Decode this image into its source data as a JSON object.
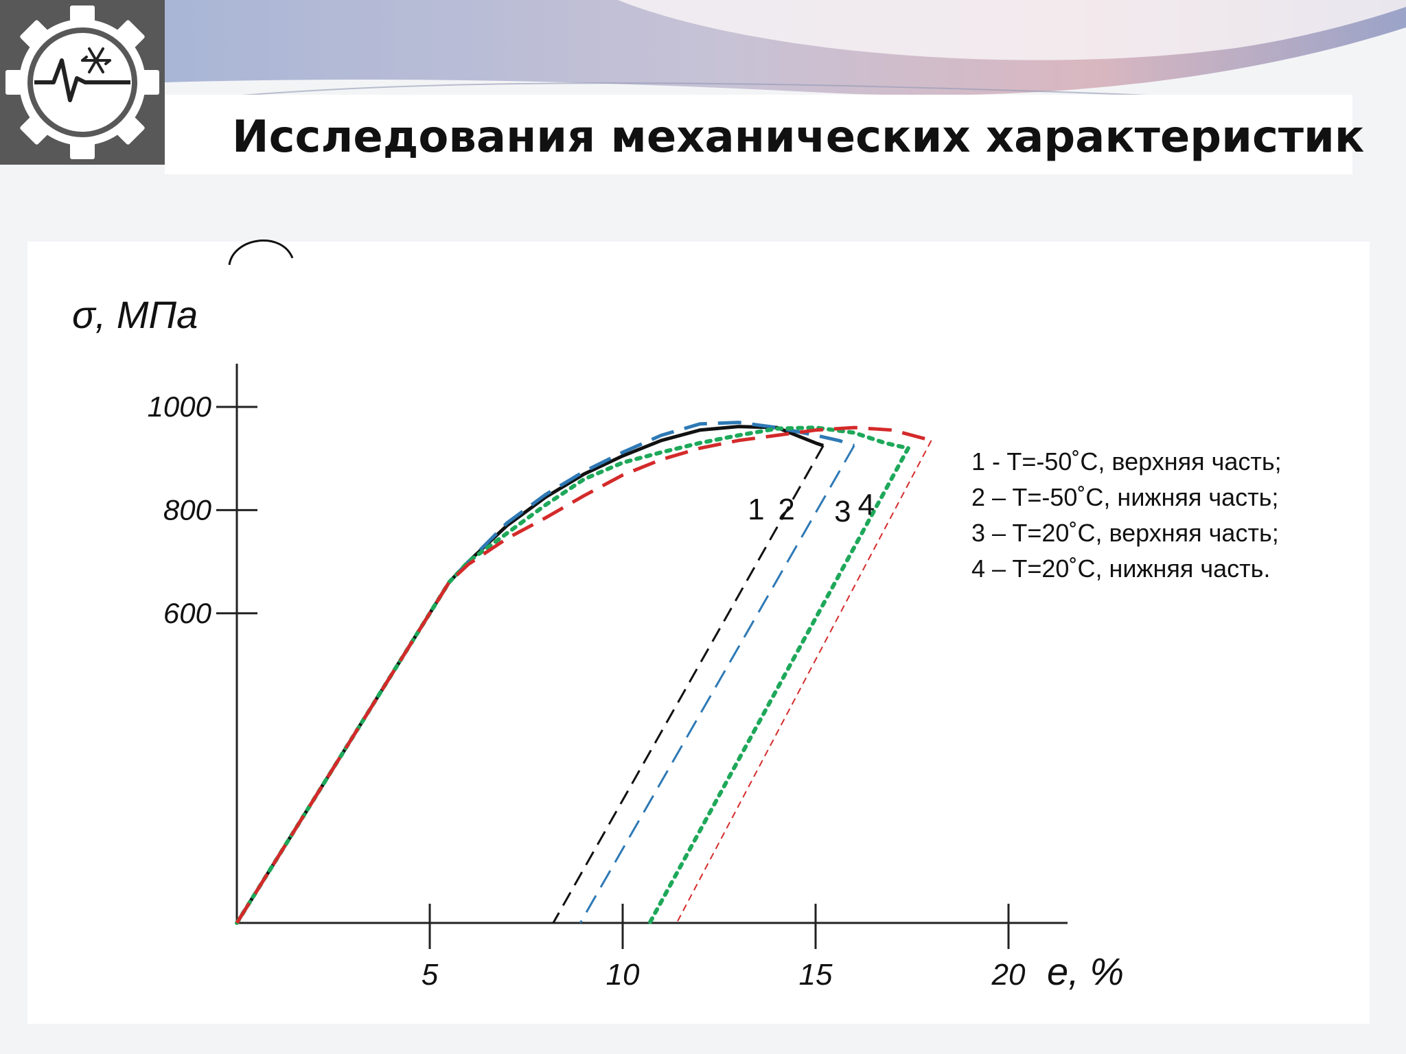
{
  "slide": {
    "title": "Исследования механических характеристик"
  },
  "logo": {
    "icon": "gear-snowflake-pulse-icon",
    "colors": {
      "gear": "#555555",
      "inner": "#ffffff",
      "symbol": "#222222"
    }
  },
  "chart_data": {
    "type": "line",
    "ylabel": "σ, МПа",
    "xlabel": "e, %",
    "xlim": [
      0,
      21
    ],
    "ylim": [
      0,
      1060
    ],
    "x_ticks": [
      {
        "value": 5,
        "label": "5"
      },
      {
        "value": 10,
        "label": "10"
      },
      {
        "value": 15,
        "label": "15"
      },
      {
        "value": 20,
        "label": "20"
      }
    ],
    "y_ticks": [
      {
        "value": 600,
        "label": "600"
      },
      {
        "value": 800,
        "label": "800"
      },
      {
        "value": 1000,
        "label": "1000"
      }
    ],
    "grid": false,
    "legend": {
      "placement": "right",
      "entries": [
        "1 - T=-50˚C, верхняя часть;",
        "2 – T=-50˚C, нижняя часть;",
        "3 – T=20˚C, верхняя часть;",
        "4 – T=20˚C, нижняя часть."
      ]
    },
    "series": [
      {
        "label": "1",
        "color": "#111111",
        "style": "solid",
        "x": [
          0,
          1,
          2,
          3,
          4,
          5,
          5.5,
          6,
          7,
          8,
          9,
          10,
          11,
          12,
          13,
          14,
          15,
          15.2
        ],
        "y": [
          0,
          120,
          240,
          360,
          480,
          600,
          660,
          700,
          770,
          825,
          870,
          905,
          935,
          955,
          962,
          960,
          930,
          925
        ],
        "unload_x": [
          15.2,
          8.2
        ],
        "unload_y": [
          925,
          0
        ]
      },
      {
        "label": "2",
        "color": "#2e79b5",
        "style": "long-dash",
        "x": [
          0,
          1,
          2,
          3,
          4,
          5,
          5.5,
          6,
          7,
          8,
          9,
          10,
          11,
          12,
          13,
          14,
          15,
          15.6,
          16
        ],
        "y": [
          0,
          120,
          240,
          360,
          480,
          600,
          660,
          700,
          775,
          830,
          875,
          912,
          945,
          967,
          970,
          960,
          945,
          935,
          925
        ],
        "unload_x": [
          16,
          8.9
        ],
        "unload_y": [
          925,
          0
        ]
      },
      {
        "label": "3",
        "color": "#1ea85a",
        "style": "dotted",
        "x": [
          0,
          1,
          2,
          3,
          4,
          5,
          5.5,
          6,
          7,
          8,
          9,
          10,
          11,
          12,
          13,
          14,
          15,
          16,
          16.8,
          17.4
        ],
        "y": [
          0,
          120,
          240,
          360,
          480,
          600,
          660,
          700,
          755,
          810,
          860,
          892,
          912,
          930,
          945,
          958,
          960,
          950,
          930,
          920
        ],
        "unload_x": [
          17.4,
          10.7
        ],
        "unload_y": [
          920,
          0
        ]
      },
      {
        "label": "4",
        "color": "#d42a2a",
        "style": "long-dash",
        "x": [
          0,
          1,
          2,
          3,
          4,
          5,
          5.5,
          6,
          7,
          8,
          9,
          10,
          11,
          12,
          13,
          14,
          15,
          16,
          17,
          18
        ],
        "y": [
          0,
          120,
          240,
          360,
          480,
          600,
          660,
          695,
          745,
          785,
          828,
          868,
          898,
          920,
          935,
          945,
          955,
          960,
          955,
          935
        ],
        "unload_x": [
          18,
          11.4
        ],
        "unload_y": [
          935,
          0
        ]
      }
    ]
  }
}
